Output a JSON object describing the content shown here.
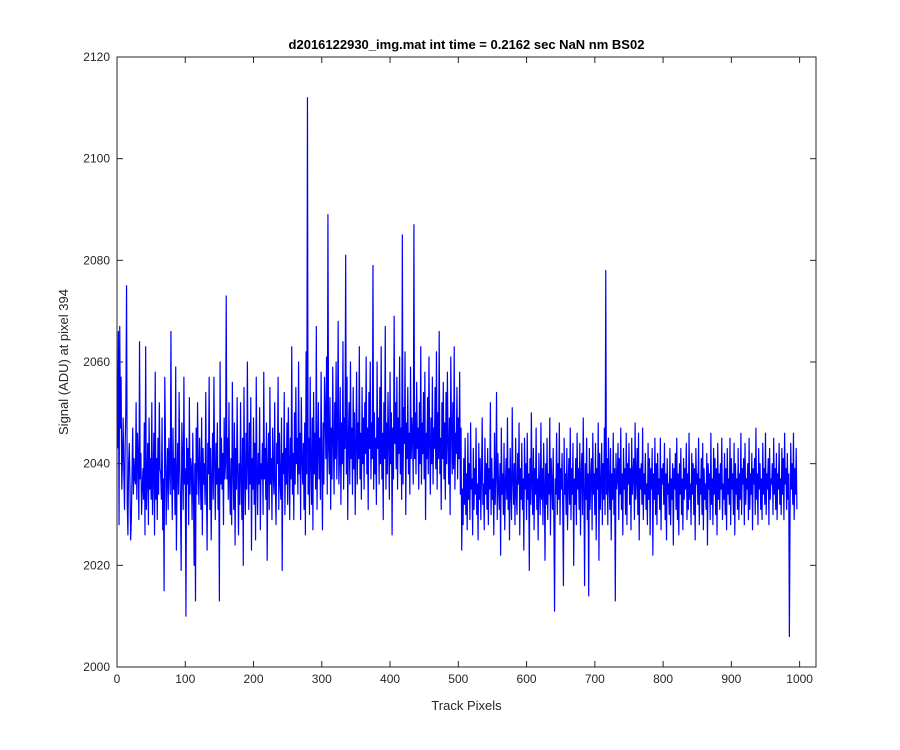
{
  "chart_data": {
    "type": "line",
    "title": "d2016122930_img.mat int time = 0.2162 sec  NaN nm BS02",
    "xlabel": "Track Pixels",
    "ylabel": "Signal (ADU) at pixel 394",
    "xlim": [
      0,
      1024
    ],
    "ylim": [
      2000,
      2120
    ],
    "xticks": [
      0,
      100,
      200,
      300,
      400,
      500,
      600,
      700,
      800,
      900,
      1000
    ],
    "yticks": [
      2000,
      2020,
      2040,
      2060,
      2080,
      2100,
      2120
    ],
    "grid": false,
    "line_color": "#0000ff",
    "series": [
      {
        "name": "",
        "x_start": 1,
        "x_step": 1,
        "values": [
          2043,
          2066,
          2028,
          2067,
          2047,
          2057,
          2035,
          2041,
          2049,
          2038,
          2031,
          2044,
          2051,
          2075,
          2032,
          2026,
          2040,
          2044,
          2036,
          2025,
          2029,
          2038,
          2047,
          2034,
          2041,
          2037,
          2036,
          2052,
          2033,
          2046,
          2041,
          2029,
          2064,
          2037,
          2042,
          2030,
          2035,
          2039,
          2033,
          2048,
          2026,
          2063,
          2031,
          2037,
          2044,
          2028,
          2049,
          2035,
          2041,
          2033,
          2052,
          2030,
          2038,
          2046,
          2026,
          2058,
          2033,
          2041,
          2029,
          2045,
          2034,
          2052,
          2039,
          2038,
          2033,
          2049,
          2027,
          2037,
          2015,
          2057,
          2045,
          2028,
          2037,
          2043,
          2031,
          2045,
          2039,
          2034,
          2066,
          2038,
          2029,
          2047,
          2035,
          2041,
          2030,
          2059,
          2023,
          2037,
          2044,
          2034,
          2054,
          2039,
          2033,
          2019,
          2048,
          2041,
          2031,
          2057,
          2036,
          2039,
          2010,
          2045,
          2036,
          2043,
          2028,
          2053,
          2034,
          2041,
          2039,
          2029,
          2046,
          2035,
          2020,
          2040,
          2013,
          2047,
          2034,
          2052,
          2039,
          2032,
          2045,
          2038,
          2031,
          2049,
          2026,
          2043,
          2036,
          2040,
          2032,
          2054,
          2035,
          2023,
          2044,
          2038,
          2057,
          2031,
          2043,
          2025,
          2037,
          2046,
          2033,
          2057,
          2040,
          2029,
          2044,
          2036,
          2048,
          2031,
          2039,
          2013,
          2060,
          2036,
          2045,
          2035,
          2042,
          2028,
          2049,
          2037,
          2040,
          2073,
          2037,
          2045,
          2033,
          2052,
          2036,
          2030,
          2041,
          2028,
          2056,
          2039,
          2031,
          2048,
          2024,
          2043,
          2035,
          2053,
          2038,
          2026,
          2040,
          2032,
          2052,
          2037,
          2029,
          2045,
          2020,
          2055,
          2038,
          2030,
          2046,
          2035,
          2060,
          2039,
          2031,
          2048,
          2036,
          2053,
          2023,
          2041,
          2035,
          2049,
          2032,
          2044,
          2025,
          2057,
          2038,
          2030,
          2042,
          2036,
          2051,
          2027,
          2040,
          2037,
          2044,
          2030,
          2058,
          2037,
          2043,
          2033,
          2048,
          2021,
          2039,
          2046,
          2031,
          2055,
          2036,
          2041,
          2029,
          2047,
          2038,
          2034,
          2052,
          2035,
          2028,
          2044,
          2040,
          2057,
          2031,
          2046,
          2036,
          2033,
          2049,
          2019,
          2042,
          2038,
          2054,
          2030,
          2043,
          2036,
          2048,
          2032,
          2051,
          2041,
          2029,
          2045,
          2037,
          2063,
          2034,
          2042,
          2029,
          2050,
          2036,
          2055,
          2040,
          2045,
          2034,
          2060,
          2038,
          2046,
          2029,
          2053,
          2041,
          2036,
          2044,
          2031,
          2048,
          2026,
          2062,
          2038,
          2112,
          2034,
          2045,
          2030,
          2057,
          2040,
          2032,
          2049,
          2027,
          2054,
          2038,
          2046,
          2035,
          2067,
          2031,
          2043,
          2052,
          2037,
          2045,
          2033,
          2058,
          2040,
          2027,
          2048,
          2036,
          2057,
          2050,
          2041,
          2061,
          2034,
          2089,
          2043,
          2038,
          2053,
          2031,
          2047,
          2037,
          2059,
          2045,
          2034,
          2052,
          2041,
          2060,
          2037,
          2046,
          2068,
          2036,
          2041,
          2055,
          2032,
          2048,
          2040,
          2064,
          2035,
          2049,
          2043,
          2081,
          2038,
          2057,
          2029,
          2045,
          2052,
          2036,
          2060,
          2041,
          2047,
          2034,
          2055,
          2039,
          2050,
          2030,
          2044,
          2058,
          2036,
          2048,
          2041,
          2063,
          2037,
          2046,
          2033,
          2055,
          2040,
          2049,
          2035,
          2052,
          2042,
          2061,
          2038,
          2047,
          2031,
          2054,
          2043,
          2060,
          2037,
          2048,
          2041,
          2079,
          2035,
          2050,
          2038,
          2045,
          2032,
          2060,
          2043,
          2049,
          2036,
          2055,
          2040,
          2063,
          2037,
          2046,
          2029,
          2052,
          2041,
          2067,
          2035,
          2048,
          2038,
          2054,
          2044,
          2033,
          2058,
          2040,
          2050,
          2026,
          2047,
          2037,
          2069,
          2044,
          2052,
          2039,
          2057,
          2035,
          2049,
          2042,
          2061,
          2038,
          2047,
          2033,
          2085,
          2036,
          2051,
          2044,
          2062,
          2030,
          2048,
          2041,
          2055,
          2038,
          2046,
          2034,
          2059,
          2041,
          2049,
          2045,
          2036,
          2087,
          2041,
          2050,
          2038,
          2056,
          2043,
          2047,
          2035,
          2052,
          2040,
          2063,
          2036,
          2048,
          2042,
          2054,
          2037,
          2058,
          2029,
          2046,
          2041,
          2053,
          2038,
          2061,
          2044,
          2034,
          2049,
          2040,
          2057,
          2036,
          2047,
          2043,
          2055,
          2039,
          2062,
          2035,
          2050,
          2041,
          2066,
          2038,
          2045,
          2031,
          2052,
          2041,
          2056,
          2037,
          2048,
          2033,
          2054,
          2040,
          2058,
          2044,
          2036,
          2049,
          2030,
          2061,
          2047,
          2038,
          2052,
          2039,
          2063,
          2035,
          2046,
          2042,
          2055,
          2037,
          2049,
          2041,
          2058,
          2034,
          2047,
          2023,
          2035,
          2028,
          2041,
          2032,
          2045,
          2030,
          2038,
          2027,
          2046,
          2033,
          2040,
          2029,
          2048,
          2035,
          2037,
          2026,
          2043,
          2031,
          2039,
          2034,
          2047,
          2030,
          2036,
          2025,
          2044,
          2033,
          2041,
          2029,
          2038,
          2049,
          2032,
          2036,
          2027,
          2045,
          2034,
          2040,
          2031,
          2043,
          2028,
          2039,
          2035,
          2052,
          2030,
          2041,
          2033,
          2037,
          2026,
          2046,
          2032,
          2038,
          2054,
          2029,
          2042,
          2035,
          2031,
          2040,
          2022,
          2047,
          2034,
          2038,
          2030,
          2044,
          2027,
          2036,
          2041,
          2033,
          2049,
          2031,
          2039,
          2025,
          2043,
          2035,
          2029,
          2051,
          2037,
          2032,
          2040,
          2028,
          2045,
          2034,
          2030,
          2042,
          2036,
          2048,
          2026,
          2039,
          2033,
          2044,
          2031,
          2037,
          2023,
          2045,
          2035,
          2040,
          2029,
          2046,
          2033,
          2038,
          2019,
          2041,
          2032,
          2050,
          2036,
          2030,
          2043,
          2027,
          2039,
          2034,
          2047,
          2031,
          2037,
          2025,
          2042,
          2035,
          2030,
          2048,
          2033,
          2039,
          2028,
          2044,
          2036,
          2021,
          2040,
          2032,
          2045,
          2029,
          2038,
          2034,
          2049,
          2026,
          2041,
          2036,
          2031,
          2043,
          2029,
          2011,
          2037,
          2034,
          2046,
          2030,
          2040,
          2033,
          2048,
          2028,
          2039,
          2035,
          2042,
          2031,
          2016,
          2045,
          2034,
          2038,
          2030,
          2043,
          2027,
          2036,
          2041,
          2032,
          2047,
          2029,
          2039,
          2034,
          2044,
          2020,
          2037,
          2032,
          2041,
          2028,
          2046,
          2035,
          2039,
          2031,
          2044,
          2026,
          2038,
          2042,
          2030,
          2049,
          2035,
          2016,
          2040,
          2033,
          2045,
          2029,
          2038,
          2014,
          2043,
          2031,
          2037,
          2041,
          2027,
          2046,
          2034,
          2038,
          2030,
          2044,
          2025,
          2039,
          2035,
          2048,
          2021,
          2042,
          2031,
          2036,
          2044,
          2028,
          2040,
          2033,
          2047,
          2030,
          2078,
          2034,
          2041,
          2028,
          2045,
          2036,
          2031,
          2043,
          2025,
          2038,
          2033,
          2046,
          2030,
          2039,
          2013,
          2042,
          2035,
          2037,
          2044,
          2029,
          2041,
          2034,
          2047,
          2031,
          2038,
          2026,
          2043,
          2035,
          2039,
          2030,
          2046,
          2028,
          2040,
          2036,
          2044,
          2032,
          2039,
          2027,
          2045,
          2034,
          2038,
          2041,
          2029,
          2048,
          2033,
          2037,
          2043,
          2030,
          2046,
          2025,
          2039,
          2035,
          2040,
          2032,
          2047,
          2029,
          2038,
          2034,
          2042,
          2031,
          2036,
          2028,
          2044,
          2033,
          2041,
          2026,
          2039,
          2035,
          2043,
          2022,
          2038,
          2033,
          2045,
          2030,
          2040,
          2028,
          2042,
          2034,
          2037,
          2031,
          2045,
          2027,
          2039,
          2036,
          2040,
          2032,
          2044,
          2029,
          2038,
          2025,
          2041,
          2034,
          2036,
          2030,
          2043,
          2028,
          2037,
          2033,
          2040,
          2024,
          2039,
          2035,
          2042,
          2031,
          2045,
          2029,
          2038,
          2026,
          2040,
          2034,
          2043,
          2030,
          2037,
          2027,
          2041,
          2033,
          2039,
          2035,
          2044,
          2029,
          2038,
          2031,
          2046,
          2033,
          2036,
          2028,
          2042,
          2034,
          2040,
          2030,
          2039,
          2025,
          2043,
          2036,
          2038,
          2032,
          2045,
          2028,
          2037,
          2034,
          2041,
          2030,
          2044,
          2027,
          2039,
          2033,
          2036,
          2031,
          2042,
          2024,
          2040,
          2035,
          2038,
          2029,
          2046,
          2032,
          2037,
          2028,
          2043,
          2034,
          2041,
          2030,
          2039,
          2026,
          2044,
          2033,
          2038,
          2031,
          2040,
          2035,
          2045,
          2029,
          2036,
          2033,
          2042,
          2030,
          2039,
          2027,
          2043,
          2034,
          2037,
          2032,
          2045,
          2028,
          2041,
          2035,
          2038,
          2030,
          2044,
          2026,
          2040,
          2034,
          2037,
          2031,
          2043,
          2029,
          2038,
          2033,
          2046,
          2030,
          2039,
          2036,
          2041,
          2028,
          2044,
          2032,
          2037,
          2035,
          2040,
          2029,
          2045,
          2031,
          2038,
          2034,
          2042,
          2027,
          2039,
          2036,
          2041,
          2030,
          2047,
          2033,
          2038,
          2028,
          2043,
          2035,
          2040,
          2031,
          2037,
          2029,
          2044,
          2034,
          2039,
          2032,
          2046,
          2030,
          2038,
          2035,
          2041,
          2028,
          2043,
          2033,
          2037,
          2036,
          2040,
          2030,
          2045,
          2034,
          2039,
          2031,
          2042,
          2029,
          2038,
          2035,
          2044,
          2032,
          2037,
          2030,
          2043,
          2034,
          2041,
          2029,
          2046,
          2036,
          2039,
          2031,
          2042,
          2033,
          2038,
          2006,
          2030,
          2044,
          2035,
          2040,
          2032,
          2046,
          2029,
          2039,
          2034,
          2043,
          2031
        ]
      }
    ]
  }
}
